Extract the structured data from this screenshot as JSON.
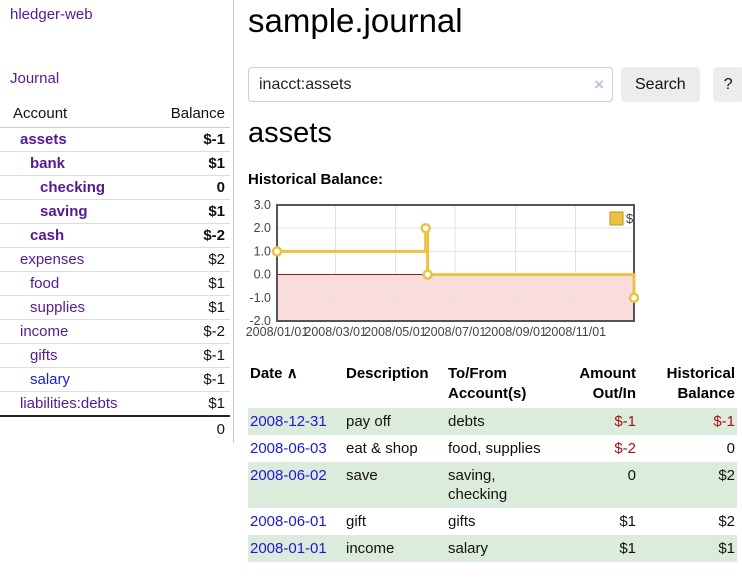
{
  "app": {
    "brand": "hledger-web",
    "nav_journal": "Journal"
  },
  "header": {
    "title": "sample.journal"
  },
  "search": {
    "value": "inacct:assets",
    "clear_icon": "×",
    "button": "Search",
    "help_button": "?"
  },
  "account_page": {
    "heading": "assets",
    "chart_label": "Historical Balance:"
  },
  "sidebar": {
    "table_headers": {
      "account": "Account",
      "balance": "Balance"
    },
    "accounts": [
      {
        "name": "assets",
        "depth": 1,
        "bold": true,
        "link": "purple",
        "balance": "$-1",
        "balance_style": "neg-strong"
      },
      {
        "name": "bank",
        "depth": 2,
        "bold": true,
        "link": "purple",
        "balance": "$1",
        "balance_style": "normal"
      },
      {
        "name": "checking",
        "depth": 3,
        "bold": true,
        "link": "purple",
        "balance": "0",
        "balance_style": "normal"
      },
      {
        "name": "saving",
        "depth": 3,
        "bold": true,
        "link": "purple",
        "balance": "$1",
        "balance_style": "normal"
      },
      {
        "name": "cash",
        "depth": 2,
        "bold": true,
        "link": "purple",
        "balance": "$-2",
        "balance_style": "neg-strong"
      },
      {
        "name": "expenses",
        "depth": 1,
        "bold": false,
        "link": "purple",
        "balance": "$2",
        "balance_style": "normal"
      },
      {
        "name": "food",
        "depth": 2,
        "bold": false,
        "link": "purple",
        "balance": "$1",
        "balance_style": "normal"
      },
      {
        "name": "supplies",
        "depth": 2,
        "bold": false,
        "link": "purple",
        "balance": "$1",
        "balance_style": "normal"
      },
      {
        "name": "income",
        "depth": 1,
        "bold": false,
        "link": "purple",
        "balance": "$-2",
        "balance_style": "neg-soft"
      },
      {
        "name": "gifts",
        "depth": 2,
        "bold": false,
        "link": "purple",
        "balance": "$-1",
        "balance_style": "neg-soft"
      },
      {
        "name": "salary",
        "depth": 2,
        "bold": false,
        "link": "blue",
        "balance": "$-1",
        "balance_style": "neg-soft"
      },
      {
        "name": "liabilities:debts",
        "depth": 1,
        "bold": false,
        "link": "purple",
        "balance": "$1",
        "balance_style": "normal"
      }
    ],
    "total": "0"
  },
  "chart_data": {
    "type": "line",
    "title": "Historical Balance",
    "step": true,
    "legend": [
      {
        "label": "$",
        "color": "#EDC240"
      }
    ],
    "legend_position": "top-right",
    "grid": true,
    "ylim": [
      -2,
      3
    ],
    "y_ticks": [
      3,
      2,
      1,
      0,
      -1,
      -2
    ],
    "xlim": [
      "2008-01-01",
      "2008-12-31"
    ],
    "x_ticks": [
      {
        "date": "2008-01-01",
        "label": "2008/01/01"
      },
      {
        "date": "2008-03-01",
        "label": "2008/03/01"
      },
      {
        "date": "2008-05-01",
        "label": "2008/05/01"
      },
      {
        "date": "2008-07-01",
        "label": "2008/07/01"
      },
      {
        "date": "2008-09-01",
        "label": "2008/09/01"
      },
      {
        "date": "2008-11-01",
        "label": "2008/11/01"
      }
    ],
    "series": [
      {
        "name": "$",
        "points": [
          {
            "date": "2008-01-01",
            "value": 1
          },
          {
            "date": "2008-06-01",
            "value": 2
          },
          {
            "date": "2008-06-03",
            "value": 0
          },
          {
            "date": "2008-12-31",
            "value": -1
          }
        ]
      }
    ],
    "line_color": "#EDC240",
    "negative_region_color": "#fbdcdc",
    "zero_line_color": "#8b2323"
  },
  "register": {
    "headers": {
      "date": "Date",
      "sort_arrow": "∧",
      "description": "Description",
      "tofrom": "To/From\nAccount(s)",
      "amount": "Amount\nOut/In",
      "balance": "Historical\nBalance"
    },
    "rows": [
      {
        "date": "2008-12-31",
        "description": "pay off",
        "accounts": "debts",
        "amount": "$-1",
        "amount_neg": true,
        "balance": "$-1",
        "balance_neg": true
      },
      {
        "date": "2008-06-03",
        "description": "eat & shop",
        "accounts": "food, supplies",
        "amount": "$-2",
        "amount_neg": true,
        "balance": "0",
        "balance_neg": false
      },
      {
        "date": "2008-06-02",
        "description": "save",
        "accounts": "saving, checking",
        "amount": "0",
        "amount_neg": false,
        "balance": "$2",
        "balance_neg": false
      },
      {
        "date": "2008-06-01",
        "description": "gift",
        "accounts": "gifts",
        "amount": "$1",
        "amount_neg": false,
        "balance": "$2",
        "balance_neg": false
      },
      {
        "date": "2008-01-01",
        "description": "income",
        "accounts": "salary",
        "amount": "$1",
        "amount_neg": false,
        "balance": "$1",
        "balance_neg": false
      }
    ]
  },
  "colors": {
    "purple": "#551b92",
    "blue": "#1a1ad6",
    "negstrong": "#a31212",
    "negsoft": "#c28484",
    "rowgreen": "#dcecdc",
    "divider": "#cccccc"
  }
}
